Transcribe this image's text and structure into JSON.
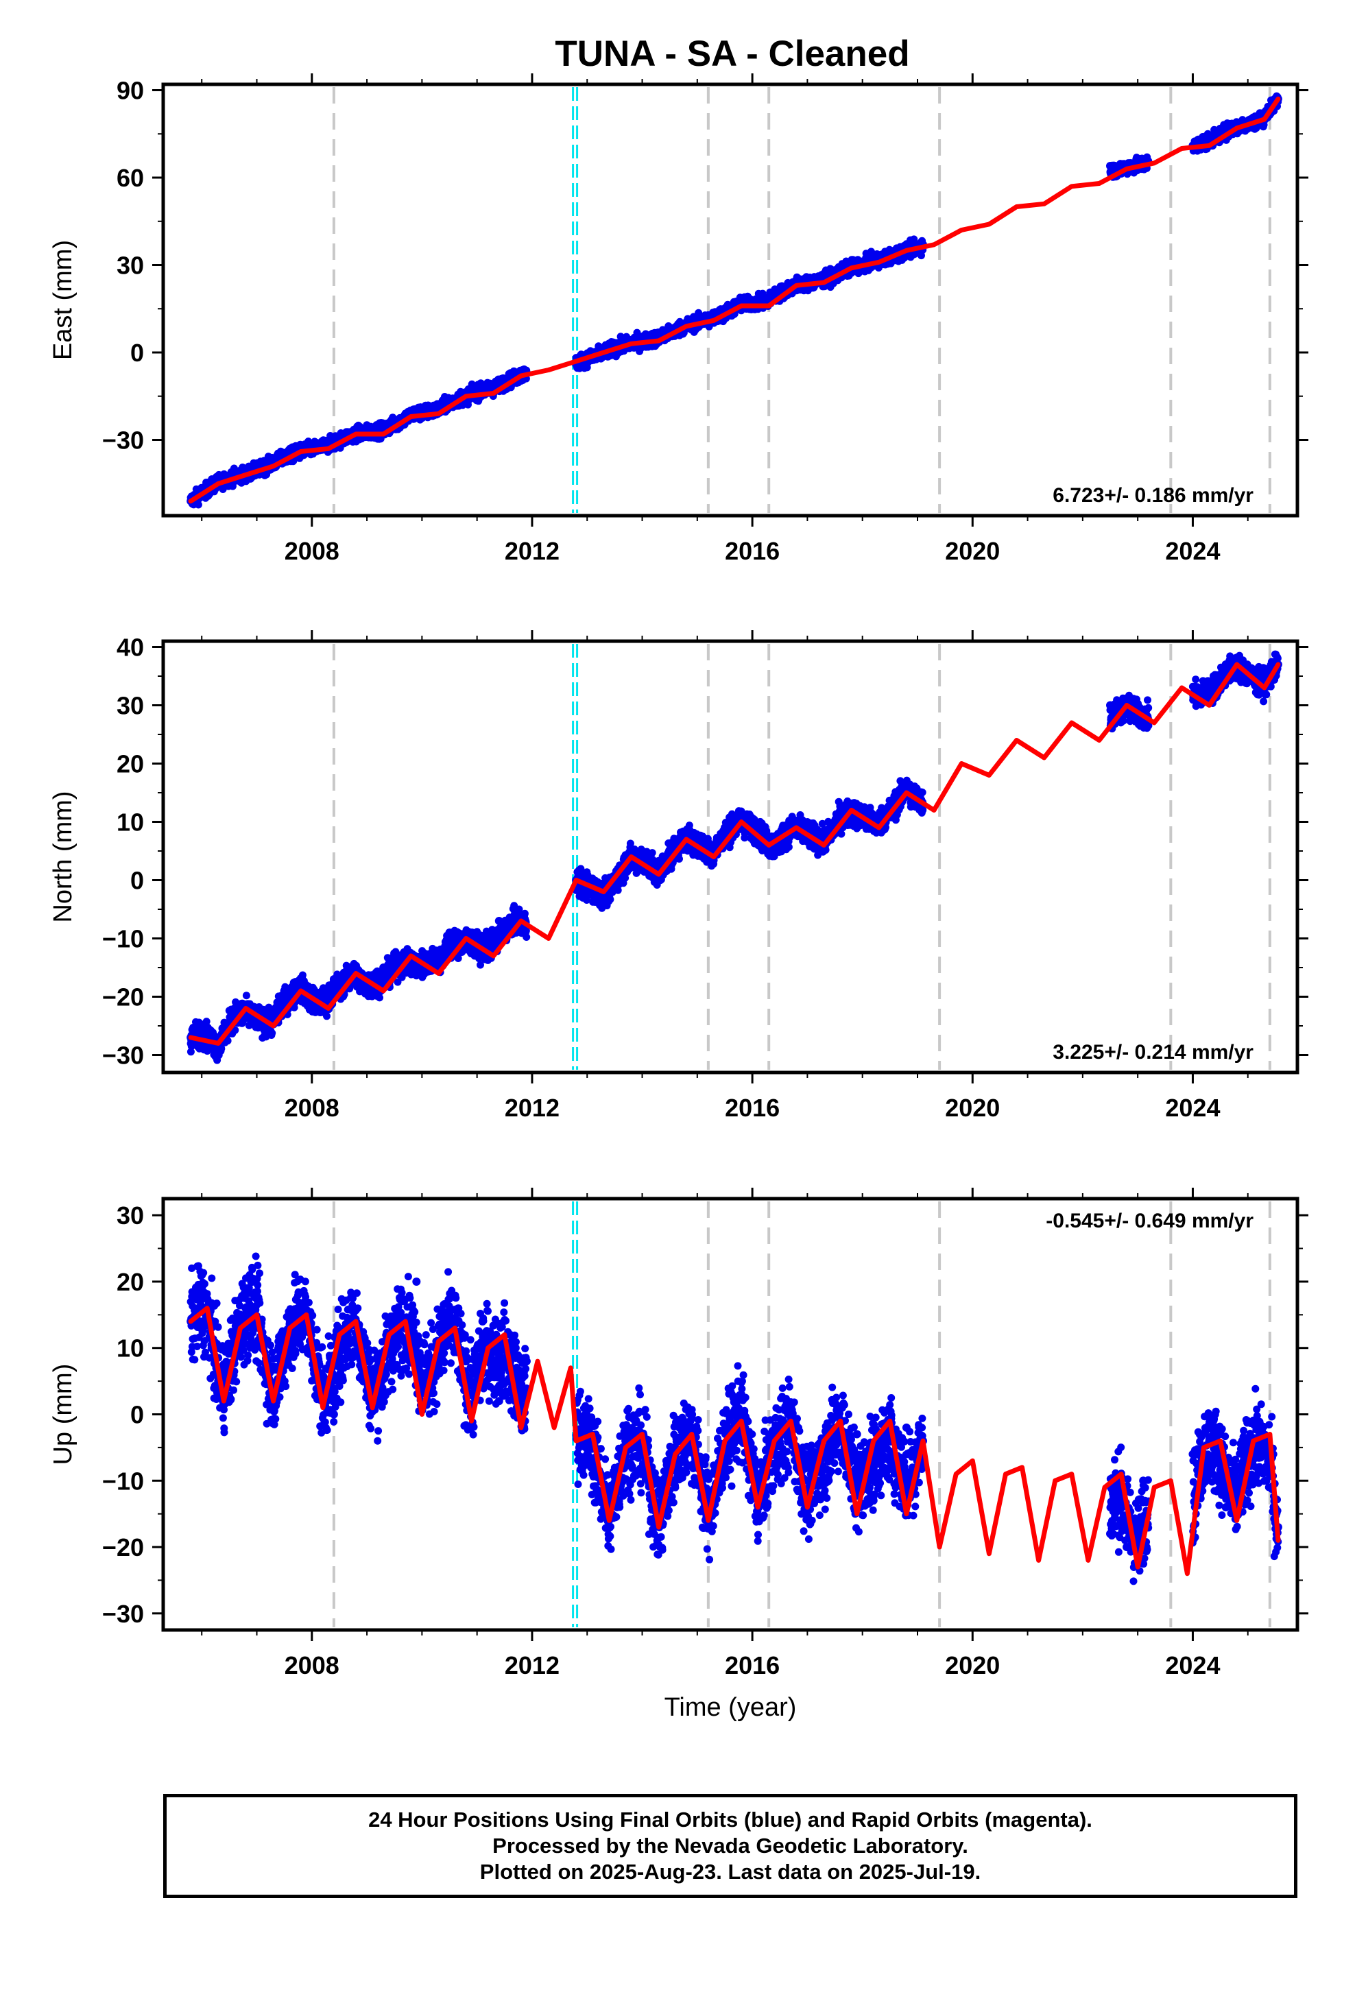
{
  "figure": {
    "title": "TUNA  - SA - Cleaned",
    "colors": {
      "data_points": "#0000ee",
      "model_line": "#ff0000",
      "offset_line": "#c8c8c8",
      "antenna_line": "#00e5ee",
      "frame": "#000000"
    }
  },
  "footer": {
    "line1": "24 Hour Positions Using Final Orbits (blue) and Rapid Orbits (magenta).",
    "line2": "Processed by the Nevada Geodetic Laboratory.",
    "line3": "Plotted on 2025-Aug-23. Last data on 2025-Jul-19."
  },
  "chart_data": [
    {
      "type": "scatter",
      "panel": "east",
      "ylabel": "East (mm)",
      "xlabel": "",
      "xlim": [
        2005.3,
        2025.9
      ],
      "ylim": [
        -56,
        92
      ],
      "xticks": [
        2008,
        2012,
        2016,
        2020,
        2024
      ],
      "xtick_labels": [
        "2008",
        "2012",
        "2016",
        "2020",
        "2024"
      ],
      "yticks": [
        -30,
        0,
        30,
        60,
        90
      ],
      "ytick_labels": [
        "−30",
        "0",
        "30",
        "60",
        "90"
      ],
      "rate": "6.723+/- 0.186 mm/yr",
      "rate_position": "bottom-right",
      "grid": false,
      "offset_epochs": [
        2008.4,
        2015.2,
        2016.3,
        2019.4,
        2023.6,
        2025.4
      ],
      "antenna_change_epochs": [
        2012.78
      ],
      "data_segments": [
        [
          2005.8,
          2011.9
        ],
        [
          2012.8,
          2019.1
        ],
        [
          2022.5,
          2023.2
        ],
        [
          2024.0,
          2025.55
        ]
      ],
      "model_line": {
        "x": [
          2005.8,
          2006.3,
          2006.8,
          2007.3,
          2007.8,
          2008.3,
          2008.8,
          2009.3,
          2009.8,
          2010.3,
          2010.8,
          2011.3,
          2011.8,
          2012.3,
          2012.8,
          2013.3,
          2013.8,
          2014.3,
          2014.8,
          2015.3,
          2015.8,
          2016.3,
          2016.8,
          2017.3,
          2017.8,
          2018.3,
          2018.8,
          2019.3,
          2019.8,
          2020.3,
          2020.8,
          2021.3,
          2021.8,
          2022.3,
          2022.8,
          2023.3,
          2023.8,
          2024.3,
          2024.8,
          2025.3,
          2025.55
        ],
        "y": [
          -51,
          -45,
          -42,
          -39,
          -34,
          -33,
          -28,
          -28,
          -22,
          -21,
          -15,
          -14,
          -8,
          -6,
          -3,
          0,
          3,
          4,
          9,
          11,
          16,
          16,
          23,
          24,
          29,
          31,
          35,
          37,
          42,
          44,
          50,
          51,
          57,
          58,
          63,
          65,
          70,
          71,
          77,
          80,
          87
        ]
      },
      "data_series": {
        "name": "",
        "x": [
          2005.8,
          2006.0,
          2006.3,
          2006.6,
          2006.9,
          2007.2,
          2007.5,
          2007.8,
          2008.1,
          2008.4,
          2008.7,
          2009.0,
          2009.3,
          2009.6,
          2009.9,
          2010.2,
          2010.5,
          2010.8,
          2011.1,
          2011.4,
          2011.7,
          2011.9,
          2012.8,
          2013.1,
          2013.4,
          2013.7,
          2014.0,
          2014.3,
          2014.6,
          2014.9,
          2015.2,
          2015.5,
          2015.8,
          2016.1,
          2016.4,
          2016.7,
          2017.0,
          2017.3,
          2017.6,
          2017.9,
          2018.2,
          2018.5,
          2018.8,
          2019.1,
          2022.5,
          2022.8,
          2023.1,
          2024.0,
          2024.3,
          2024.6,
          2024.9,
          2025.2,
          2025.55
        ],
        "y": [
          -51,
          -48,
          -44,
          -42,
          -41,
          -38,
          -35,
          -34,
          -32,
          -30,
          -28,
          -27,
          -25,
          -23,
          -20,
          -19,
          -16,
          -15,
          -12,
          -10,
          -8,
          -7,
          -4,
          -2,
          1,
          3,
          4,
          6,
          8,
          10,
          12,
          14,
          17,
          18,
          21,
          23,
          24,
          26,
          28,
          30,
          32,
          33,
          35,
          37,
          64,
          64,
          65,
          71,
          74,
          77,
          78,
          80,
          87
        ]
      }
    },
    {
      "type": "scatter",
      "panel": "north",
      "ylabel": "North (mm)",
      "xlabel": "",
      "xlim": [
        2005.3,
        2025.9
      ],
      "ylim": [
        -33,
        41
      ],
      "xticks": [
        2008,
        2012,
        2016,
        2020,
        2024
      ],
      "xtick_labels": [
        "2008",
        "2012",
        "2016",
        "2020",
        "2024"
      ],
      "yticks": [
        -30,
        -20,
        -10,
        0,
        10,
        20,
        30,
        40
      ],
      "ytick_labels": [
        "−30",
        "−20",
        "−10",
        "0",
        "10",
        "20",
        "30",
        "40"
      ],
      "rate": "3.225+/- 0.214 mm/yr",
      "rate_position": "bottom-right",
      "grid": false,
      "offset_epochs": [
        2008.4,
        2015.2,
        2016.3,
        2019.4,
        2023.6,
        2025.4
      ],
      "antenna_change_epochs": [
        2012.78
      ],
      "data_segments": [
        [
          2005.8,
          2011.9
        ],
        [
          2012.8,
          2019.1
        ],
        [
          2022.5,
          2023.2
        ],
        [
          2024.0,
          2025.55
        ]
      ],
      "model_line": {
        "x": [
          2005.8,
          2006.3,
          2006.8,
          2007.3,
          2007.8,
          2008.3,
          2008.8,
          2009.3,
          2009.8,
          2010.3,
          2010.8,
          2011.3,
          2011.8,
          2012.3,
          2012.8,
          2013.3,
          2013.8,
          2014.3,
          2014.8,
          2015.3,
          2015.8,
          2016.3,
          2016.8,
          2017.3,
          2017.8,
          2018.3,
          2018.8,
          2019.3,
          2019.8,
          2020.3,
          2020.8,
          2021.3,
          2021.8,
          2022.3,
          2022.8,
          2023.3,
          2023.8,
          2024.3,
          2024.8,
          2025.3,
          2025.55
        ],
        "y": [
          -27,
          -28,
          -22,
          -25,
          -19,
          -22,
          -16,
          -19,
          -13,
          -16,
          -10,
          -13,
          -7,
          -10,
          0,
          -2,
          4,
          1,
          7,
          4,
          10,
          6,
          9,
          6,
          12,
          9,
          15,
          12,
          20,
          18,
          24,
          21,
          27,
          24,
          30,
          27,
          33,
          30,
          37,
          33,
          37
        ]
      },
      "data_series": {
        "name": "",
        "x": [
          2005.8,
          2006.0,
          2006.3,
          2006.6,
          2006.9,
          2007.2,
          2007.5,
          2007.8,
          2008.1,
          2008.4,
          2008.7,
          2009.0,
          2009.3,
          2009.6,
          2009.9,
          2010.2,
          2010.5,
          2010.8,
          2011.1,
          2011.4,
          2011.7,
          2011.9,
          2012.8,
          2013.1,
          2013.4,
          2013.7,
          2014.0,
          2014.3,
          2014.6,
          2014.9,
          2015.2,
          2015.5,
          2015.8,
          2016.1,
          2016.4,
          2016.7,
          2017.0,
          2017.3,
          2017.6,
          2017.9,
          2018.2,
          2018.5,
          2018.8,
          2019.1,
          2022.5,
          2022.8,
          2023.1,
          2024.0,
          2024.3,
          2024.6,
          2024.9,
          2025.2,
          2025.55
        ],
        "y": [
          -27,
          -25,
          -29,
          -22,
          -24,
          -25,
          -19,
          -18,
          -22,
          -17,
          -16,
          -19,
          -15,
          -13,
          -16,
          -12,
          -9,
          -11,
          -12,
          -7,
          -6,
          -8,
          0,
          -2,
          -3,
          3,
          4,
          2,
          6,
          8,
          5,
          9,
          10,
          9,
          5,
          9,
          8,
          7,
          12,
          11,
          10,
          12,
          16,
          13,
          30,
          29,
          28,
          32,
          34,
          37,
          36,
          34,
          37
        ]
      }
    },
    {
      "type": "scatter",
      "panel": "up",
      "ylabel": "Up (mm)",
      "xlabel": "Time (year)",
      "xlim": [
        2005.3,
        2025.9
      ],
      "ylim": [
        -32.5,
        32.5
      ],
      "xticks": [
        2008,
        2012,
        2016,
        2020,
        2024
      ],
      "xtick_labels": [
        "2008",
        "2012",
        "2016",
        "2020",
        "2024"
      ],
      "yticks": [
        -30,
        -20,
        -10,
        0,
        10,
        20,
        30
      ],
      "ytick_labels": [
        "−30",
        "−20",
        "−10",
        "0",
        "10",
        "20",
        "30"
      ],
      "rate": "-0.545+/- 0.649 mm/yr",
      "rate_position": "top-right",
      "grid": false,
      "offset_epochs": [
        2008.4,
        2015.2,
        2016.3,
        2019.4,
        2023.6,
        2025.4
      ],
      "antenna_change_epochs": [
        2012.78
      ],
      "data_segments": [
        [
          2005.8,
          2011.9
        ],
        [
          2012.8,
          2019.1
        ],
        [
          2022.5,
          2023.2
        ],
        [
          2024.0,
          2025.55
        ]
      ],
      "model_line": {
        "x": [
          2005.8,
          2006.1,
          2006.4,
          2006.7,
          2007.0,
          2007.3,
          2007.6,
          2007.9,
          2008.2,
          2008.5,
          2008.8,
          2009.1,
          2009.4,
          2009.7,
          2010.0,
          2010.3,
          2010.6,
          2010.9,
          2011.2,
          2011.5,
          2011.8,
          2012.1,
          2012.4,
          2012.7,
          2012.8,
          2013.1,
          2013.4,
          2013.7,
          2014.0,
          2014.3,
          2014.6,
          2014.9,
          2015.2,
          2015.5,
          2015.8,
          2016.1,
          2016.4,
          2016.7,
          2017.0,
          2017.3,
          2017.6,
          2017.9,
          2018.2,
          2018.5,
          2018.8,
          2019.1,
          2019.4,
          2019.7,
          2020.0,
          2020.3,
          2020.6,
          2020.9,
          2021.2,
          2021.5,
          2021.8,
          2022.1,
          2022.4,
          2022.7,
          2023.0,
          2023.3,
          2023.6,
          2023.9,
          2024.2,
          2024.5,
          2024.8,
          2025.1,
          2025.4,
          2025.55
        ],
        "y": [
          14,
          16,
          2,
          13,
          15,
          2,
          13,
          15,
          1,
          12,
          14,
          1,
          12,
          14,
          0,
          11,
          13,
          -1,
          10,
          12,
          -2,
          8,
          -2,
          7,
          -4,
          -3,
          -16,
          -5,
          -3,
          -17,
          -6,
          -3,
          -16,
          -4,
          -1,
          -14,
          -4,
          -1,
          -14,
          -4,
          -1,
          -15,
          -4,
          -1,
          -15,
          -4,
          -20,
          -9,
          -7,
          -21,
          -9,
          -8,
          -22,
          -10,
          -9,
          -22,
          -11,
          -9,
          -23,
          -11,
          -10,
          -24,
          -5,
          -4,
          -16,
          -4,
          -3,
          -19
        ]
      },
      "data_series": {
        "name": "",
        "x": [
          2005.8,
          2006.0,
          2006.3,
          2006.6,
          2006.9,
          2007.2,
          2007.5,
          2007.8,
          2008.1,
          2008.4,
          2008.7,
          2009.0,
          2009.3,
          2009.6,
          2009.9,
          2010.2,
          2010.5,
          2010.8,
          2011.1,
          2011.4,
          2011.7,
          2011.9,
          2012.8,
          2013.1,
          2013.4,
          2013.7,
          2014.0,
          2014.3,
          2014.6,
          2014.9,
          2015.2,
          2015.5,
          2015.8,
          2016.1,
          2016.4,
          2016.7,
          2017.0,
          2017.3,
          2017.6,
          2017.9,
          2018.2,
          2018.5,
          2018.8,
          2019.1,
          2022.5,
          2022.8,
          2023.1,
          2024.0,
          2024.3,
          2024.6,
          2024.9,
          2025.2,
          2025.55
        ],
        "y": [
          14,
          18,
          5,
          12,
          20,
          6,
          10,
          16,
          8,
          0,
          14,
          9,
          3,
          12,
          20,
          5,
          15,
          8,
          14,
          2,
          10,
          8,
          2,
          -9,
          -15,
          -3,
          -8,
          -16,
          -5,
          -2,
          -14,
          -6,
          3,
          -12,
          -6,
          -2,
          -10,
          -12,
          -1,
          -3,
          -13,
          -8,
          -2,
          -4,
          -18,
          -20,
          -10,
          -6,
          -4,
          -14,
          -4,
          -8,
          -17
        ]
      }
    }
  ]
}
